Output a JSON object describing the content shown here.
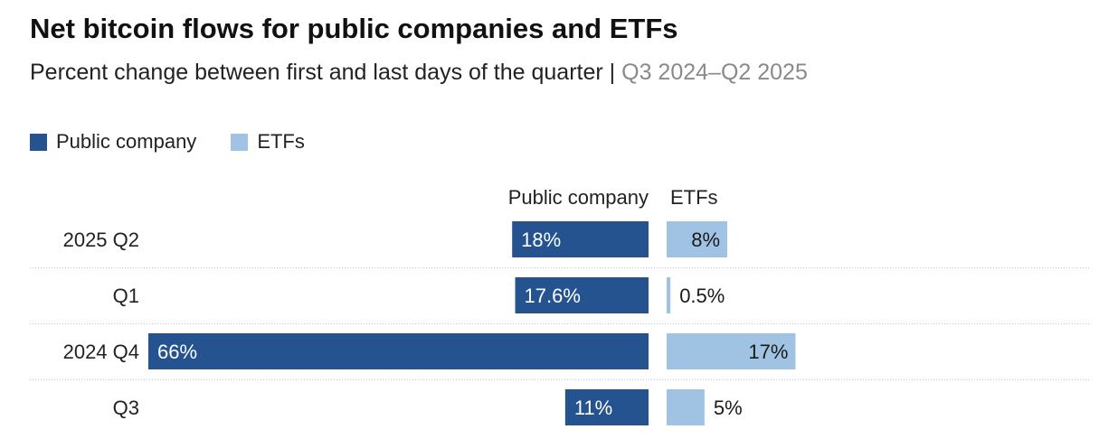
{
  "title": "Net bitcoin flows for public companies and ETFs",
  "subtitle": "Percent change between first and last days of the quarter",
  "subtitle_separator": "|",
  "subtitle_range": "Q3 2024–Q2 2025",
  "colors": {
    "public_company": "#24538f",
    "etfs": "#a0c3e3",
    "label_on_dark": "#ffffff",
    "label_on_light": "#1a1a1a",
    "divider": "#c8c8c8"
  },
  "chart_data": {
    "type": "bar",
    "orientation": "horizontal",
    "title": "Net bitcoin flows for public companies and ETFs",
    "subtitle": "Percent change between first and last days of the quarter | Q3 2024–Q2 2025",
    "legend": [
      "Public company",
      "ETFs"
    ],
    "legend_position": "top-left",
    "column_headers": [
      "Public company",
      "ETFs"
    ],
    "categories": [
      "2025 Q2",
      "Q1",
      "2024 Q4",
      "Q3"
    ],
    "series": [
      {
        "name": "Public company",
        "values": [
          18,
          17.6,
          66,
          11
        ],
        "labels": [
          "18%",
          "17.6%",
          "66%",
          "11%"
        ],
        "direction": "left"
      },
      {
        "name": "ETFs",
        "values": [
          8,
          0.5,
          17,
          5
        ],
        "labels": [
          "8%",
          "0.5%",
          "17%",
          "5%"
        ],
        "direction": "right"
      }
    ],
    "grid": false,
    "row_dividers": true
  }
}
